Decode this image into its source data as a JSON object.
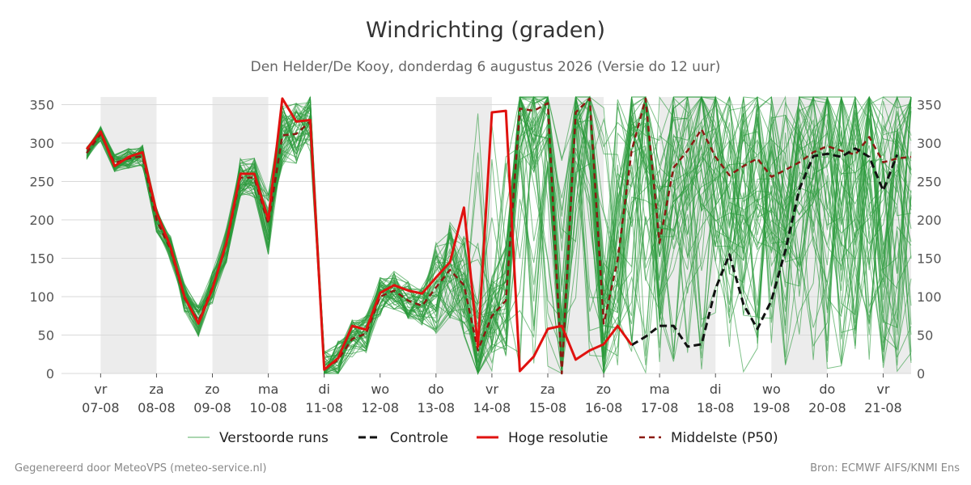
{
  "chart_data": {
    "type": "line",
    "title": "Windrichting (graden)",
    "subtitle": "Den Helder/De Kooy, donderdag  6 augustus 2026 (Versie do 12 uur)",
    "ylim": [
      0,
      360
    ],
    "y_ticks": [
      0,
      50,
      100,
      150,
      200,
      250,
      300,
      350
    ],
    "x_unit": "days since 07-08 00:00",
    "xlim": [
      -0.7,
      14.5
    ],
    "x_ticks": [
      {
        "day": "vr",
        "date": "07-08"
      },
      {
        "day": "za",
        "date": "08-08"
      },
      {
        "day": "zo",
        "date": "09-08"
      },
      {
        "day": "ma",
        "date": "10-08"
      },
      {
        "day": "di",
        "date": "11-08"
      },
      {
        "day": "wo",
        "date": "12-08"
      },
      {
        "day": "do",
        "date": "13-08"
      },
      {
        "day": "vr",
        "date": "14-08"
      },
      {
        "day": "za",
        "date": "15-08"
      },
      {
        "day": "zo",
        "date": "16-08"
      },
      {
        "day": "ma",
        "date": "17-08"
      },
      {
        "day": "di",
        "date": "18-08"
      },
      {
        "day": "wo",
        "date": "19-08"
      },
      {
        "day": "do",
        "date": "20-08"
      },
      {
        "day": "vr",
        "date": "21-08"
      }
    ],
    "weekend_bands": [
      [
        0,
        1
      ],
      [
        2,
        3
      ],
      [
        6,
        7
      ],
      [
        8,
        9
      ],
      [
        10,
        11
      ],
      [
        12,
        13
      ],
      [
        14,
        14.5
      ]
    ],
    "series": [
      {
        "name": "Hoge resolutie",
        "color": "#e0120f",
        "x": [
          -0.25,
          0,
          0.25,
          0.5,
          0.75,
          1,
          1.25,
          1.5,
          1.75,
          2,
          2.25,
          2.5,
          2.75,
          3,
          3.25,
          3.5,
          3.75,
          4,
          4.25,
          4.5,
          4.75,
          5,
          5.25,
          5.5,
          5.75,
          6,
          6.25,
          6.5,
          6.75,
          7,
          7.25,
          7.5,
          7.75,
          8,
          8.25,
          8.5,
          8.75,
          9,
          9.25,
          9.5
        ],
        "y": [
          292,
          315,
          270,
          282,
          288,
          210,
          165,
          100,
          65,
          110,
          170,
          260,
          260,
          200,
          358,
          328,
          330,
          5,
          20,
          62,
          57,
          105,
          115,
          108,
          104,
          125,
          145,
          216,
          35,
          340,
          342,
          3,
          22,
          58,
          62,
          18,
          30,
          38,
          62,
          37
        ]
      },
      {
        "name": "Controle",
        "color": "#111111",
        "x": [
          9.5,
          9.75,
          10,
          10.25,
          10.5,
          10.75,
          11,
          11.25,
          11.5,
          11.75,
          12,
          12.25,
          12.5,
          12.75,
          13,
          13.25,
          13.5,
          13.75,
          14,
          14.25
        ],
        "y": [
          37,
          48,
          62,
          62,
          35,
          38,
          110,
          155,
          90,
          58,
          95,
          160,
          240,
          283,
          286,
          282,
          293,
          282,
          238,
          285
        ]
      },
      {
        "name": "Middelste (P50)",
        "color": "#8b1a12",
        "x": [
          -0.25,
          0,
          0.25,
          0.5,
          0.75,
          1,
          1.25,
          1.5,
          1.75,
          2,
          2.25,
          2.5,
          2.75,
          3,
          3.25,
          3.5,
          3.75,
          4,
          4.25,
          4.5,
          4.75,
          5,
          5.25,
          5.5,
          5.75,
          6,
          6.25,
          6.5,
          6.75,
          7,
          7.25,
          7.5,
          7.75,
          8,
          8.25,
          8.5,
          8.75,
          9,
          9.25,
          9.5,
          9.75,
          10,
          10.25,
          10.5,
          10.75,
          11,
          11.25,
          11.5,
          11.75,
          12,
          12.25,
          12.5,
          12.75,
          13,
          13.25,
          13.5,
          13.75,
          14,
          14.25,
          14.5
        ],
        "y": [
          287,
          312,
          274,
          280,
          283,
          200,
          162,
          98,
          68,
          112,
          168,
          255,
          255,
          195,
          310,
          312,
          328,
          5,
          18,
          45,
          52,
          100,
          108,
          95,
          88,
          112,
          135,
          115,
          30,
          75,
          95,
          345,
          342,
          352,
          0,
          340,
          358,
          65,
          148,
          290,
          358,
          170,
          268,
          290,
          318,
          282,
          258,
          270,
          280,
          256,
          265,
          275,
          288,
          296,
          290,
          285,
          308,
          275,
          280,
          282
        ]
      }
    ],
    "ensemble": {
      "name": "Verstoorde runs",
      "color": "#2a9a3a"
    }
  },
  "legend": {
    "items": [
      "Verstoorde runs",
      "Controle",
      "Hoge resolutie",
      "Middelste (P50)"
    ]
  },
  "footer": {
    "left": "Gegenereerd door MeteoVPS (meteo-service.nl)",
    "right": "Bron: ECMWF AIFS/KNMI Ens"
  }
}
